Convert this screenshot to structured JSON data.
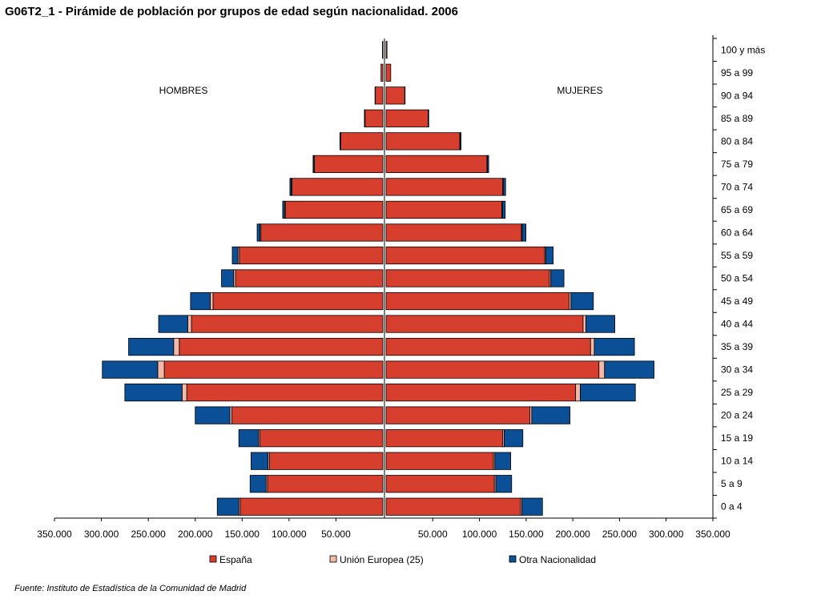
{
  "title": "G06T2_1 - Pirámide de población por grupos de edad según nacionalidad. 2006",
  "source": "Fuente: Instituto de Estadística de la Comunidad de Madrid",
  "colors": {
    "España": "#d63f2e",
    "Unión Europea (25)": "#f3b9a6",
    "Otra Nacionalidad": "#0b4f96"
  },
  "chart_data": {
    "type": "bar",
    "orientation": "horizontal",
    "layout": "population-pyramid",
    "side_labels": {
      "left": "HOMBRES",
      "right": "MUJERES"
    },
    "categories": [
      "0 a 4",
      "5 a 9",
      "10 a 14",
      "15 a 19",
      "20 a 24",
      "25 a 29",
      "30 a 34",
      "35 a 39",
      "40 a 44",
      "45 a 49",
      "50 a 54",
      "55 a 59",
      "60 a 64",
      "65 a 69",
      "70 a 74",
      "75 a 79",
      "80 a 84",
      "85 a 89",
      "90 a 94",
      "95 a 99",
      "100 y más"
    ],
    "xlim": [
      -350000,
      350000
    ],
    "x_ticks": [
      -350000,
      -300000,
      -250000,
      -200000,
      -150000,
      -100000,
      -50000,
      50000,
      100000,
      150000,
      200000,
      250000,
      300000,
      350000
    ],
    "x_tick_labels": [
      "350.000",
      "300.000",
      "250.000",
      "200.000",
      "150.000",
      "100.000",
      "50.000",
      "50.000",
      "100.000",
      "150.000",
      "200.000",
      "250.000",
      "300.000",
      "350.000"
    ],
    "legend": {
      "placement": "bottom",
      "entries": [
        "España",
        "Unión Europea (25)",
        "Otra Nacionalidad"
      ]
    },
    "grid": false,
    "series": [
      {
        "name": "España",
        "hombres": [
          152000,
          123000,
          121000,
          131000,
          161000,
          209000,
          233000,
          217000,
          204000,
          181000,
          157000,
          153000,
          130000,
          104000,
          97000,
          73000,
          45000,
          19000,
          8000,
          2000,
          500
        ],
        "mujeres": [
          144000,
          116000,
          115000,
          125000,
          154000,
          203000,
          228000,
          219000,
          211000,
          196000,
          175000,
          170000,
          145000,
          124000,
          125000,
          108000,
          79000,
          45000,
          20000,
          5000,
          1000
        ]
      },
      {
        "name": "Unión Europea (25)",
        "hombres": [
          1500,
          1500,
          1500,
          1500,
          2000,
          5000,
          7000,
          6000,
          4000,
          3000,
          2000,
          1500,
          1000,
          800,
          600,
          400,
          300,
          200,
          100,
          0,
          0
        ],
        "mujeres": [
          1500,
          1500,
          1500,
          1500,
          2000,
          5000,
          6000,
          4000,
          3000,
          2000,
          1500,
          1000,
          800,
          600,
          500,
          400,
          300,
          200,
          100,
          0,
          0
        ]
      },
      {
        "name": "Otra Nacionalidad",
        "hombres": [
          23000,
          17000,
          18000,
          21000,
          37000,
          61000,
          59000,
          48000,
          31000,
          21000,
          13000,
          6000,
          3000,
          2000,
          1500,
          1000,
          500,
          500,
          300,
          0,
          0
        ],
        "mujeres": [
          22000,
          17000,
          17000,
          20000,
          41000,
          59000,
          53000,
          43000,
          31000,
          24000,
          14000,
          8000,
          4000,
          3000,
          2500,
          1500,
          1000,
          500,
          300,
          0,
          0
        ]
      }
    ]
  }
}
